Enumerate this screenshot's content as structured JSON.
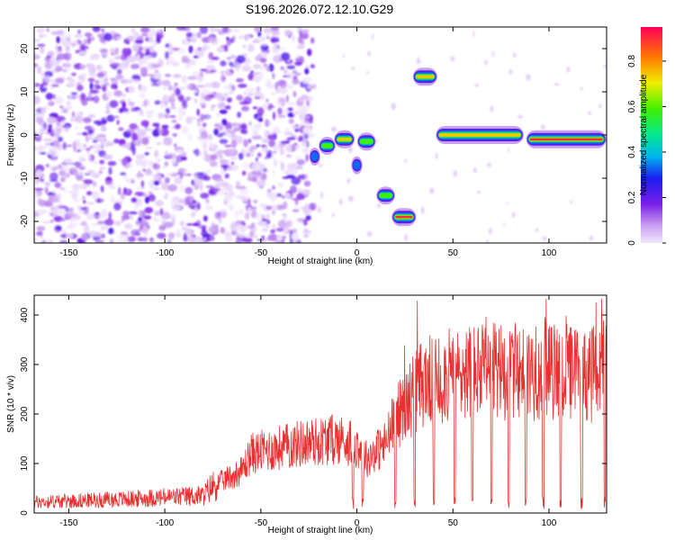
{
  "title": "S196.2026.072.12.10.G29",
  "chart_data": [
    {
      "type": "heatmap",
      "xlabel": "Height of straight line (km)",
      "ylabel": "Frequency (Hz)",
      "xlim": [
        -168,
        130
      ],
      "ylim": [
        -25,
        25
      ],
      "xticks": [
        -150,
        -100,
        -50,
        0,
        50,
        100
      ],
      "yticks": [
        -20,
        -10,
        0,
        10,
        20
      ],
      "grid": false,
      "noise_region_x": [
        -168,
        -23
      ],
      "signal_track": [
        {
          "x0": -23,
          "x1": -21,
          "freq": -5,
          "amp": 0.45
        },
        {
          "x0": -18,
          "x1": -13,
          "freq": -2.5,
          "amp": 0.65
        },
        {
          "x0": -10,
          "x1": -3,
          "freq": -1,
          "amp": 0.85
        },
        {
          "x0": -1,
          "x1": 1,
          "freq": -7,
          "amp": 0.35
        },
        {
          "x0": 2,
          "x1": 8,
          "freq": -1.5,
          "amp": 0.6
        },
        {
          "x0": 12,
          "x1": 18,
          "freq": -14,
          "amp": 0.75
        },
        {
          "x0": 20,
          "x1": 29,
          "freq": -19,
          "amp": 0.95
        },
        {
          "x0": 31,
          "x1": 40,
          "freq": 13.5,
          "amp": 0.8
        },
        {
          "x0": 43,
          "x1": 85,
          "freq": 0,
          "amp": 0.85
        },
        {
          "x0": 90,
          "x1": 128,
          "freq": -1,
          "amp": 0.95
        }
      ],
      "colorbar": {
        "label": "Normalized spectral amplitude",
        "range": [
          0,
          0.95
        ],
        "ticks": [
          0,
          0.2,
          0.4,
          0.6,
          0.8
        ]
      }
    },
    {
      "type": "line",
      "xlabel": "Height of straight line (km)",
      "ylabel": "SNR (10 * v/v)",
      "xlim": [
        -168,
        130
      ],
      "ylim": [
        0,
        440
      ],
      "xticks": [
        -150,
        -100,
        -50,
        0,
        50,
        100
      ],
      "yticks": [
        0,
        100,
        200,
        300,
        400
      ],
      "grid": false,
      "series": [
        {
          "color": "#e83030",
          "profile_x": [
            -168,
            -120,
            -80,
            -75,
            -60,
            -55,
            -30,
            -20,
            -10,
            0,
            5,
            15,
            18,
            20,
            25,
            30,
            35,
            40,
            60,
            80,
            100,
            130
          ],
          "profile_y": [
            22,
            28,
            35,
            55,
            85,
            120,
            140,
            145,
            150,
            140,
            110,
            140,
            170,
            190,
            215,
            245,
            265,
            270,
            285,
            285,
            285,
            280
          ],
          "dropouts_x": [
            -2,
            3,
            20,
            30,
            40,
            51,
            60,
            70,
            79,
            88,
            97,
            106,
            117,
            129
          ],
          "max_value": 432
        }
      ]
    }
  ]
}
